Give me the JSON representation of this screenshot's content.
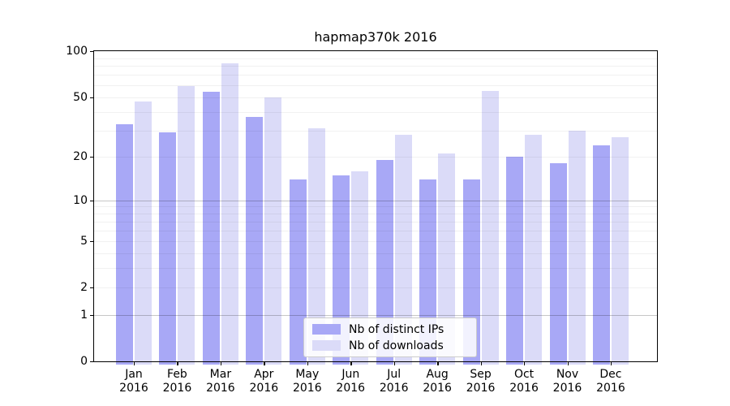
{
  "title": "hapmap370k 2016",
  "year": "2016",
  "legend": {
    "items": [
      {
        "label": "Nb of distinct IPs",
        "color": "#a8a8f6"
      },
      {
        "label": "Nb of downloads",
        "color": "#dbdbf8"
      }
    ]
  },
  "chart_data": {
    "type": "bar",
    "title": "hapmap370k 2016",
    "scale": "log10(1+y)",
    "ylim": [
      0,
      100
    ],
    "grid": "both, drawn above bars",
    "legend_position": "lower center",
    "categories": [
      "Jan",
      "Feb",
      "Mar",
      "Apr",
      "May",
      "Jun",
      "Jul",
      "Aug",
      "Sep",
      "Oct",
      "Nov",
      "Dec"
    ],
    "category_year": "2016",
    "series": [
      {
        "name": "Nb of distinct IPs",
        "color": "#a8a8f6",
        "values": [
          33,
          29,
          54,
          37,
          14,
          15,
          19,
          14,
          14,
          20,
          18,
          24
        ]
      },
      {
        "name": "Nb of downloads",
        "color": "#dbdbf8",
        "values": [
          47,
          59,
          83,
          50,
          31,
          16,
          28,
          21,
          55,
          28,
          30,
          27
        ]
      }
    ],
    "y_ticks": [
      100,
      50,
      20,
      10,
      5,
      2,
      1,
      0
    ],
    "y_major_gridlines": [
      1,
      10
    ],
    "y_minor_gridlines": [
      2,
      3,
      4,
      5,
      6,
      7,
      8,
      9,
      20,
      30,
      40,
      50,
      60,
      70,
      80,
      90
    ]
  }
}
